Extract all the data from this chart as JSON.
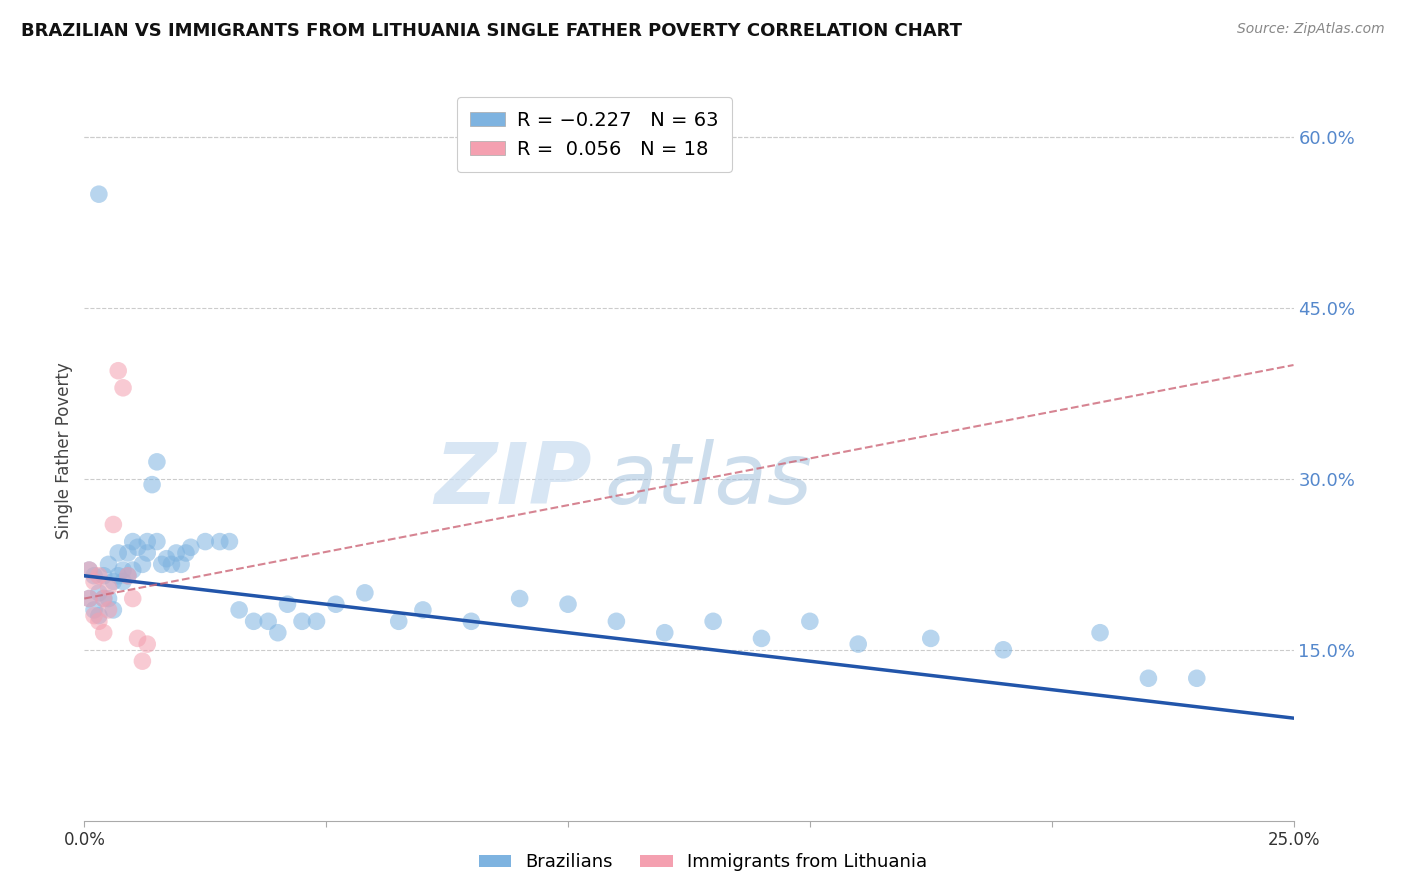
{
  "title": "BRAZILIAN VS IMMIGRANTS FROM LITHUANIA SINGLE FATHER POVERTY CORRELATION CHART",
  "source": "Source: ZipAtlas.com",
  "ylabel": "Single Father Poverty",
  "right_yticks": [
    "60.0%",
    "45.0%",
    "30.0%",
    "15.0%"
  ],
  "right_ytick_vals": [
    0.6,
    0.45,
    0.3,
    0.15
  ],
  "xlim": [
    0.0,
    0.25
  ],
  "ylim": [
    0.0,
    0.65
  ],
  "blue_color": "#7EB3E0",
  "pink_color": "#F4A0B0",
  "line_blue": "#2255AA",
  "line_pink": "#CC6677",
  "watermark_color": "#C8DCF0",
  "brazilians_x": [
    0.001,
    0.001,
    0.002,
    0.002,
    0.003,
    0.003,
    0.004,
    0.004,
    0.005,
    0.005,
    0.006,
    0.006,
    0.007,
    0.007,
    0.008,
    0.008,
    0.009,
    0.009,
    0.01,
    0.01,
    0.011,
    0.012,
    0.013,
    0.013,
    0.014,
    0.015,
    0.015,
    0.016,
    0.017,
    0.018,
    0.019,
    0.02,
    0.021,
    0.022,
    0.025,
    0.028,
    0.03,
    0.032,
    0.035,
    0.038,
    0.04,
    0.042,
    0.045,
    0.048,
    0.052,
    0.058,
    0.065,
    0.07,
    0.08,
    0.09,
    0.1,
    0.11,
    0.12,
    0.13,
    0.14,
    0.15,
    0.16,
    0.175,
    0.19,
    0.21,
    0.22,
    0.23,
    0.003
  ],
  "brazilians_y": [
    0.22,
    0.195,
    0.215,
    0.185,
    0.2,
    0.18,
    0.195,
    0.215,
    0.225,
    0.195,
    0.21,
    0.185,
    0.235,
    0.215,
    0.21,
    0.22,
    0.235,
    0.215,
    0.245,
    0.22,
    0.24,
    0.225,
    0.245,
    0.235,
    0.295,
    0.315,
    0.245,
    0.225,
    0.23,
    0.225,
    0.235,
    0.225,
    0.235,
    0.24,
    0.245,
    0.245,
    0.245,
    0.185,
    0.175,
    0.175,
    0.165,
    0.19,
    0.175,
    0.175,
    0.19,
    0.2,
    0.175,
    0.185,
    0.175,
    0.195,
    0.19,
    0.175,
    0.165,
    0.175,
    0.16,
    0.175,
    0.155,
    0.16,
    0.15,
    0.165,
    0.125,
    0.125,
    0.55
  ],
  "lithuania_x": [
    0.001,
    0.001,
    0.002,
    0.002,
    0.003,
    0.003,
    0.004,
    0.004,
    0.005,
    0.005,
    0.006,
    0.007,
    0.008,
    0.009,
    0.01,
    0.011,
    0.012,
    0.013
  ],
  "lithuania_y": [
    0.22,
    0.195,
    0.21,
    0.18,
    0.215,
    0.175,
    0.195,
    0.165,
    0.205,
    0.185,
    0.26,
    0.395,
    0.38,
    0.215,
    0.195,
    0.16,
    0.14,
    0.155
  ],
  "blue_line_x": [
    0.0,
    0.25
  ],
  "blue_line_y": [
    0.215,
    0.09
  ],
  "pink_line_x": [
    0.0,
    0.25
  ],
  "pink_line_y": [
    0.195,
    0.4
  ]
}
